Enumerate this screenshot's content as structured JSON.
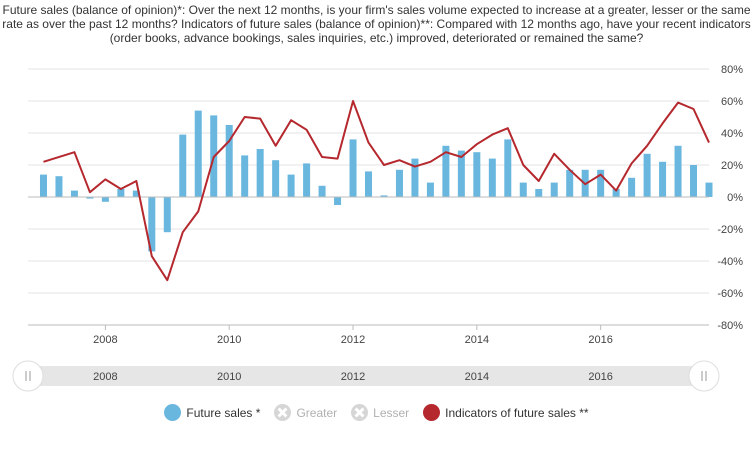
{
  "title": "Future sales (balance of opinion)*: Over the next 12 months, is your firm's sales volume expected to increase at a greater, lesser or the same rate as over the past 12 months? Indicators of future sales (balance of opinion)**: Compared with 12 months ago, have your recent indicators (order books, advance bookings, sales inquiries, etc.) improved, deteriorated or remained the same?",
  "legend": [
    {
      "label": "Future sales *",
      "color": "#69b7de",
      "active": true,
      "icon": "circle-icon"
    },
    {
      "label": "Greater",
      "color": "#d6d6d6",
      "active": false,
      "icon": "x-circle-icon"
    },
    {
      "label": "Lesser",
      "color": "#d6d6d6",
      "active": false,
      "icon": "x-circle-icon"
    },
    {
      "label": "Indicators of future sales **",
      "color": "#b5282e",
      "active": true,
      "icon": "circle-icon"
    }
  ],
  "navigator": {
    "labels": [
      "2008",
      "2010",
      "2012",
      "2014",
      "2016"
    ]
  },
  "chart_data": {
    "type": "bar",
    "ylim": [
      -80,
      80
    ],
    "yticks": [
      80,
      60,
      40,
      20,
      0,
      -20,
      -40,
      -60,
      -80
    ],
    "ytick_suffix": "%",
    "xlim": [
      2006.75,
      2017.75
    ],
    "xticks": [
      2008,
      2010,
      2012,
      2014,
      2016
    ],
    "grid": true,
    "legend_position": "bottom",
    "series": [
      {
        "name": "Future sales *",
        "type": "bar",
        "color": "#69b7de",
        "x": [
          2007.0,
          2007.25,
          2007.5,
          2007.75,
          2008.0,
          2008.25,
          2008.5,
          2008.75,
          2009.0,
          2009.25,
          2009.5,
          2009.75,
          2010.0,
          2010.25,
          2010.5,
          2010.75,
          2011.0,
          2011.25,
          2011.5,
          2011.75,
          2012.0,
          2012.25,
          2012.5,
          2012.75,
          2013.0,
          2013.25,
          2013.5,
          2013.75,
          2014.0,
          2014.25,
          2014.5,
          2014.75,
          2015.0,
          2015.25,
          2015.5,
          2015.75,
          2016.0,
          2016.25,
          2016.5,
          2016.75,
          2017.0,
          2017.25,
          2017.5,
          2017.75
        ],
        "values": [
          14,
          13,
          4,
          -1,
          -3,
          5,
          4,
          -34,
          -22,
          39,
          54,
          51,
          45,
          26,
          30,
          23,
          14,
          21,
          7,
          -5,
          36,
          16,
          1,
          17,
          24,
          9,
          32,
          29,
          28,
          24,
          36,
          9,
          5,
          9,
          17,
          17,
          17,
          5,
          12,
          27,
          22,
          32,
          20,
          9
        ]
      },
      {
        "name": "Indicators of future sales **",
        "type": "line",
        "color": "#b5282e",
        "x": [
          2007.0,
          2007.5,
          2007.75,
          2008.0,
          2008.25,
          2008.5,
          2008.75,
          2009.0,
          2009.25,
          2009.5,
          2009.75,
          2010.0,
          2010.25,
          2010.5,
          2010.75,
          2011.0,
          2011.25,
          2011.5,
          2011.75,
          2012.0,
          2012.25,
          2012.5,
          2012.75,
          2013.0,
          2013.25,
          2013.5,
          2013.75,
          2014.0,
          2014.25,
          2014.5,
          2014.75,
          2015.0,
          2015.25,
          2015.5,
          2015.75,
          2016.0,
          2016.25,
          2016.5,
          2016.75,
          2017.0,
          2017.25,
          2017.5,
          2017.75
        ],
        "values": [
          22,
          28,
          3,
          11,
          5,
          10,
          -37,
          -52,
          -22,
          -9,
          25,
          35,
          50,
          49,
          32,
          48,
          42,
          25,
          24,
          60,
          34,
          20,
          23,
          19,
          22,
          28,
          25,
          33,
          39,
          43,
          20,
          10,
          27,
          17,
          8,
          14,
          4,
          21,
          32,
          46,
          59,
          55,
          34
        ]
      }
    ]
  }
}
